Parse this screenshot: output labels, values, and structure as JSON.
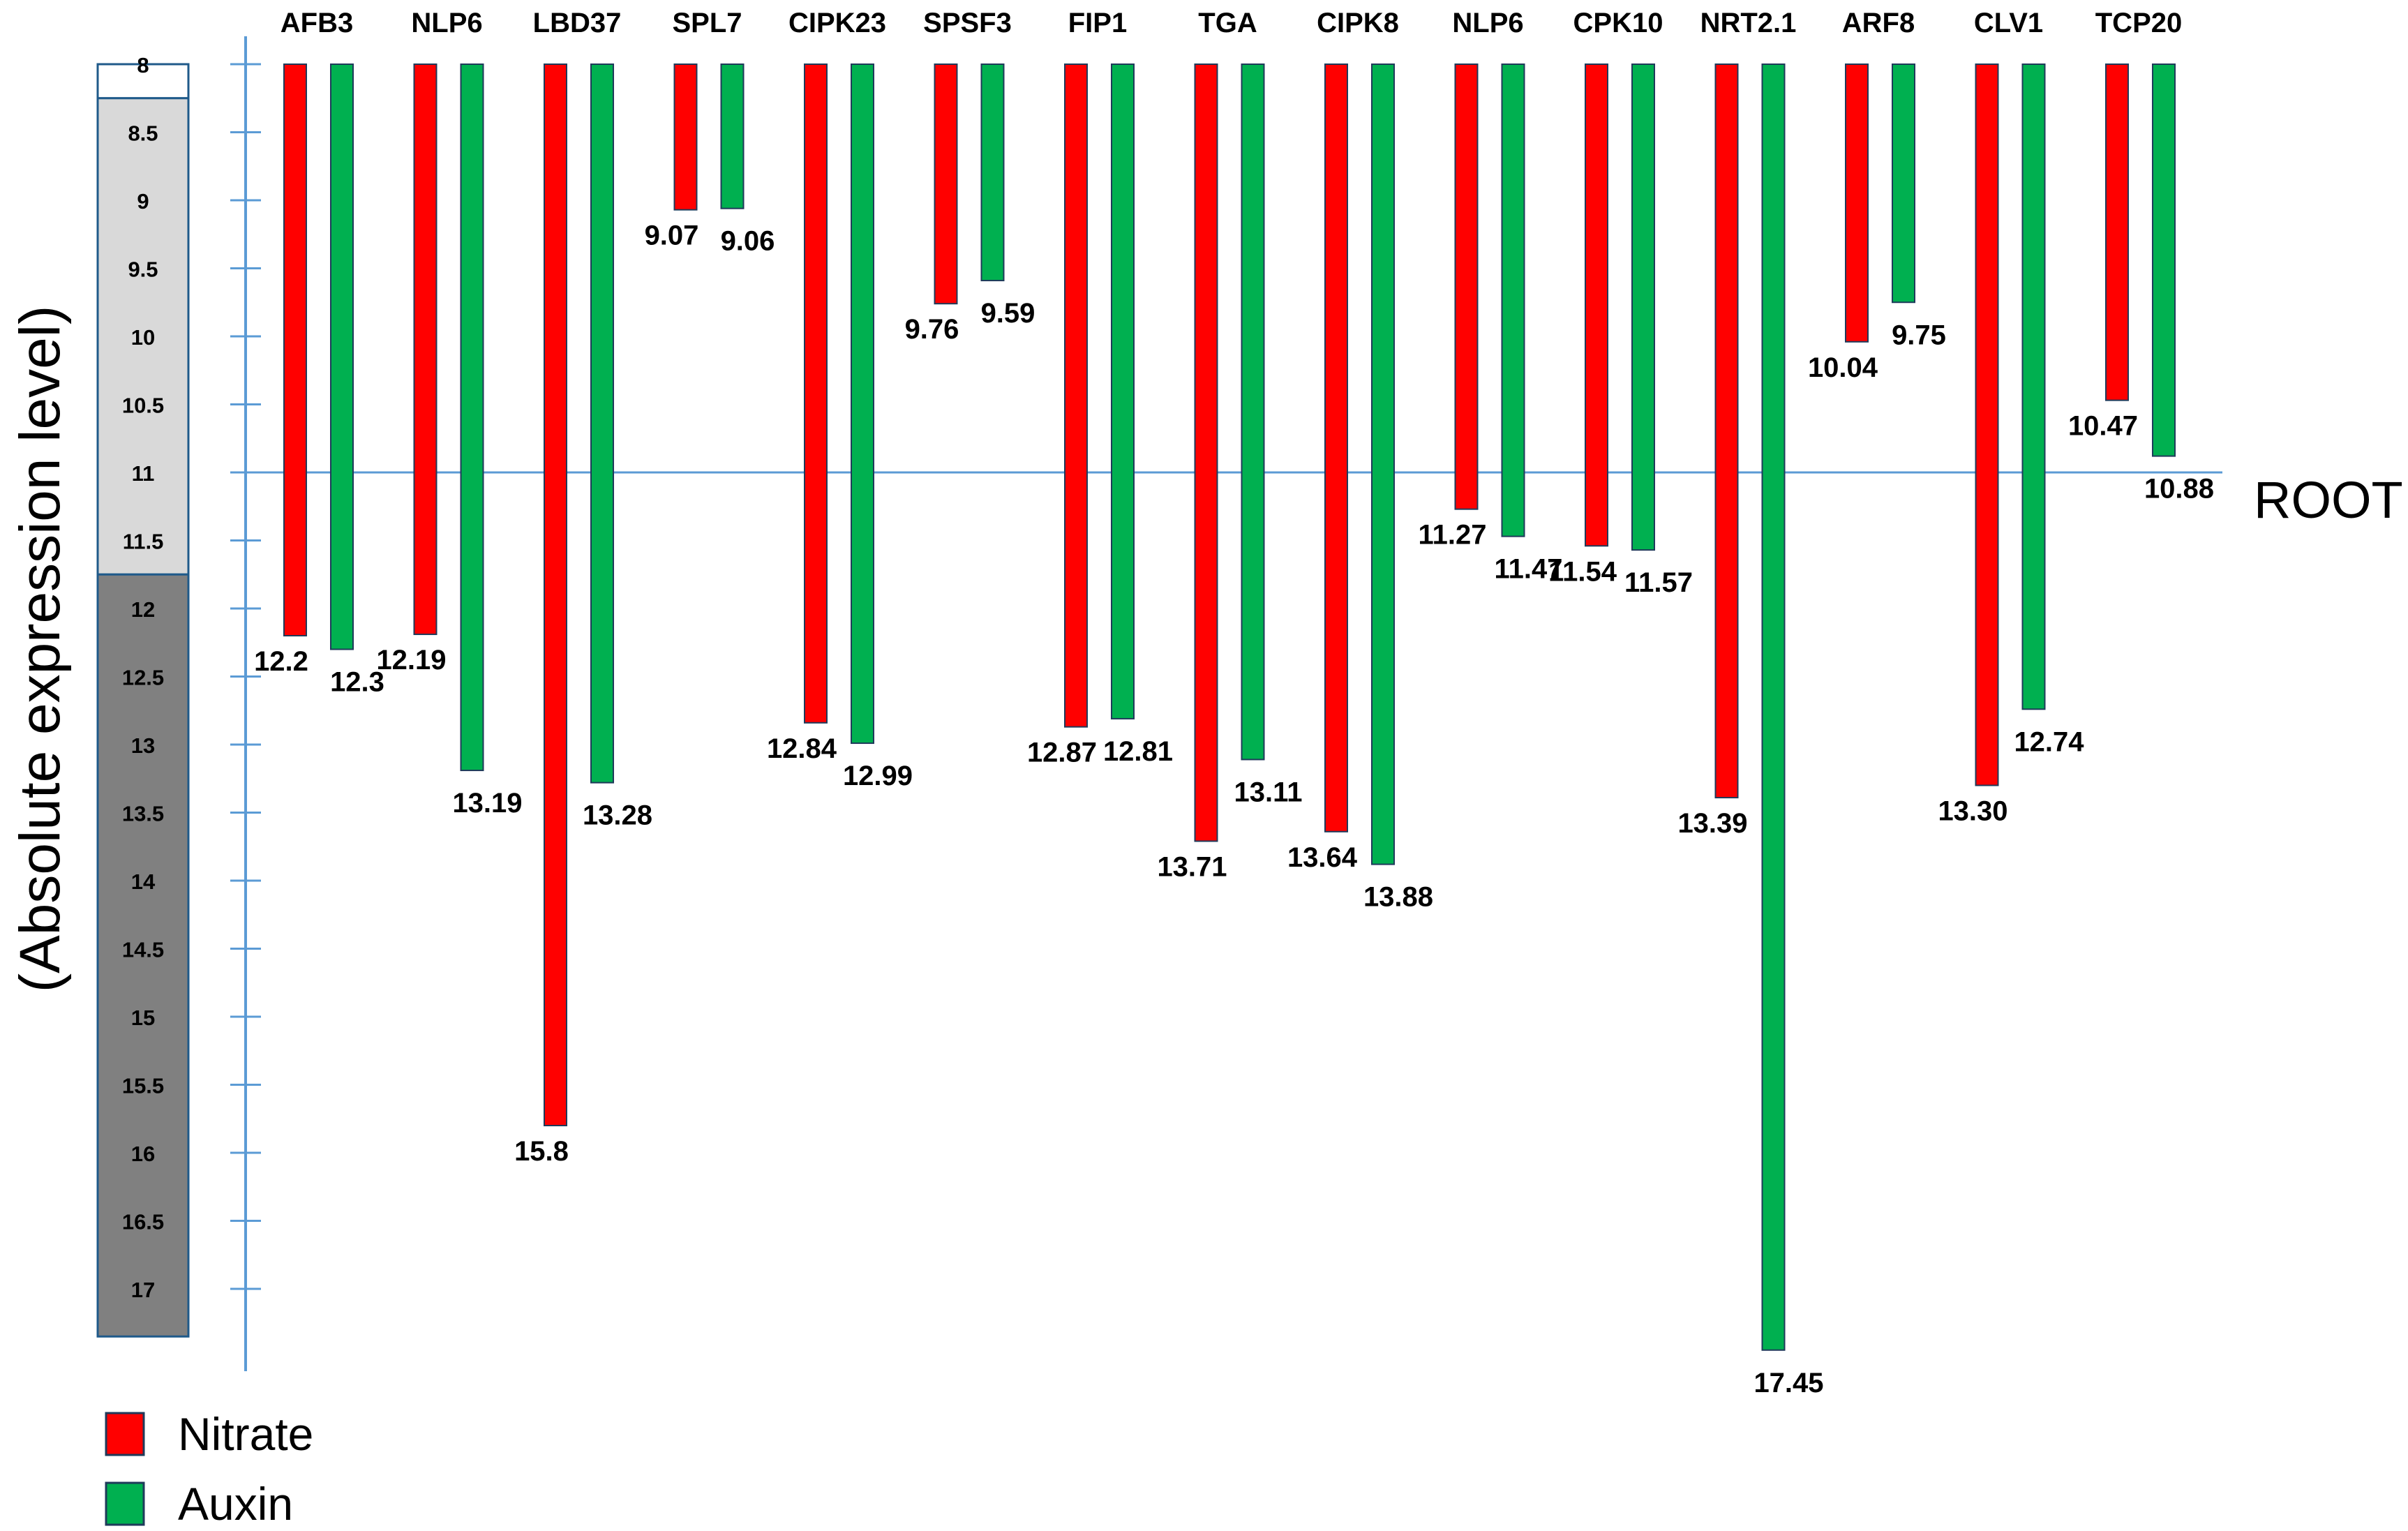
{
  "chart_data": {
    "type": "bar",
    "ylabel": "(Absolute expression level)",
    "reference_line": {
      "value": 11,
      "label": "ROOT"
    },
    "ylim": [
      8,
      17
    ],
    "yticks": [
      "8",
      "8.5",
      "9",
      "9.5",
      "10",
      "10.5",
      "11",
      "11.5",
      "12",
      "12.5",
      "13",
      "13.5",
      "14",
      "14.5",
      "15",
      "15.5",
      "16",
      "16.5",
      "17"
    ],
    "legend": {
      "position": "bottom-left"
    },
    "categories": [
      "AFB3",
      "NLP6",
      "LBD37",
      "SPL7",
      "CIPK23",
      "SPSF3",
      "FIP1",
      "TGA",
      "CIPK8",
      "NLP6",
      "CPK10",
      "NRT2.1",
      "ARF8",
      "CLV1",
      "TCP20"
    ],
    "series": [
      {
        "name": "Nitrate",
        "color": "#ff0000",
        "values": [
          12.2,
          12.19,
          15.8,
          9.07,
          12.84,
          9.76,
          12.87,
          13.71,
          13.64,
          11.27,
          11.54,
          13.39,
          10.04,
          13.3,
          10.47
        ],
        "labels": [
          "12.2",
          "12.19",
          "15.8",
          "9.07",
          "12.84",
          "9.76",
          "12.87",
          "13.71",
          "13.64",
          "11.27",
          "11.54",
          "13.39",
          "10.04",
          "13.30",
          "10.47"
        ]
      },
      {
        "name": "Auxin",
        "color": "#00b050",
        "values": [
          12.3,
          13.19,
          13.28,
          9.06,
          12.99,
          9.59,
          12.81,
          13.11,
          13.88,
          11.47,
          11.57,
          17.45,
          9.75,
          12.74,
          10.88
        ],
        "labels": [
          "12.3",
          "13.19",
          "13.28",
          "9.06",
          "12.99",
          "9.59",
          "12.81",
          "13.11",
          "13.88",
          "11.47",
          "11.57",
          "17.45",
          "9.75",
          "12.74",
          "10.88"
        ]
      }
    ],
    "scale_bar_bands": [
      {
        "from": 8,
        "to": 8.25,
        "color": "#ffffff"
      },
      {
        "from": 8.25,
        "to": 11.75,
        "color": "#d9d9d9"
      },
      {
        "from": 11.75,
        "to": 17.35,
        "color": "#808080"
      }
    ]
  }
}
